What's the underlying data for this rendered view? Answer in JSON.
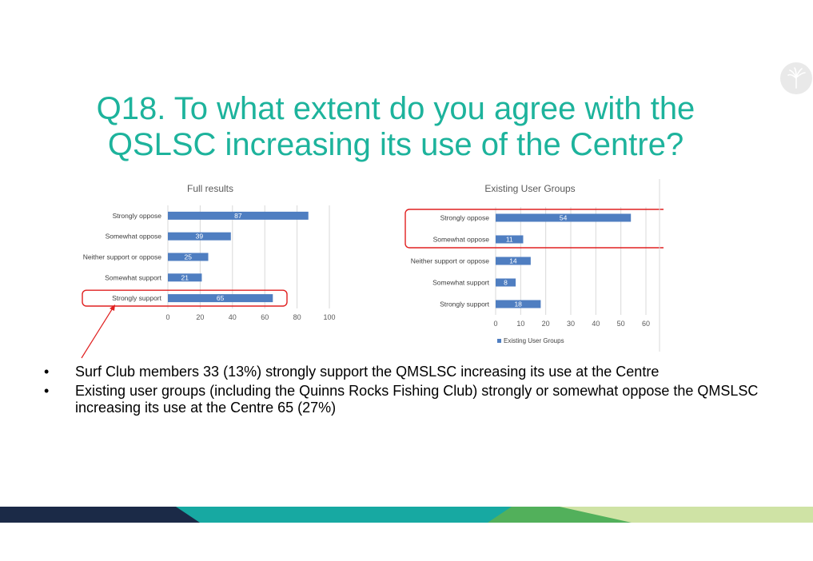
{
  "slide": {
    "title_lines": [
      "Q18. To what extent do you agree with the",
      "QSLSC increasing its use of the Centre?"
    ],
    "bullets": [
      "Surf Club members 33 (13%) strongly support the QMSLSC increasing its use at the Centre",
      "Existing user groups (including the Quinns Rocks Fishing Club) strongly or somewhat oppose the QMSLSC increasing its use at the Centre 65 (27%)"
    ],
    "bullet_symbol": "•",
    "colors": {
      "title": "#1db39c",
      "bar": "#4f7ec1",
      "highlight": "#e02020",
      "footer_navy": "#1b2a47",
      "footer_teal": "#17a9a2",
      "footer_green": "#52b05b",
      "footer_lime": "#cfe3a5"
    },
    "logo_icon": "palm-leaf-icon"
  },
  "chart_data": [
    {
      "type": "bar",
      "orientation": "horizontal",
      "title": "Full results",
      "categories": [
        "Strongly oppose",
        "Somewhat oppose",
        "Neither support or oppose",
        "Somewhat support",
        "Strongly support"
      ],
      "values": [
        87,
        39,
        25,
        21,
        65
      ],
      "xlim": [
        0,
        100
      ],
      "xticks": [
        0,
        20,
        40,
        60,
        80,
        100
      ],
      "xtick_labels": [
        "0",
        "20",
        "40",
        "60",
        "80",
        "100"
      ],
      "grid": true,
      "legend": "",
      "highlighted_categories": [
        "Strongly support"
      ]
    },
    {
      "type": "bar",
      "orientation": "horizontal",
      "title": "Existing User Groups",
      "categories": [
        "Strongly oppose",
        "Somewhat oppose",
        "Neither support or oppose",
        "Somewhat support",
        "Strongly support"
      ],
      "values": [
        54,
        11,
        14,
        8,
        18
      ],
      "xlim": [
        0,
        60
      ],
      "xticks": [
        0,
        10,
        20,
        30,
        40,
        50,
        60
      ],
      "xtick_labels": [
        "0",
        "10",
        "20",
        "30",
        "40",
        "50",
        "60"
      ],
      "grid": true,
      "legend": "Existing User Groups",
      "legend_position": "bottom-left",
      "highlighted_categories": [
        "Strongly oppose",
        "Somewhat oppose"
      ]
    }
  ]
}
